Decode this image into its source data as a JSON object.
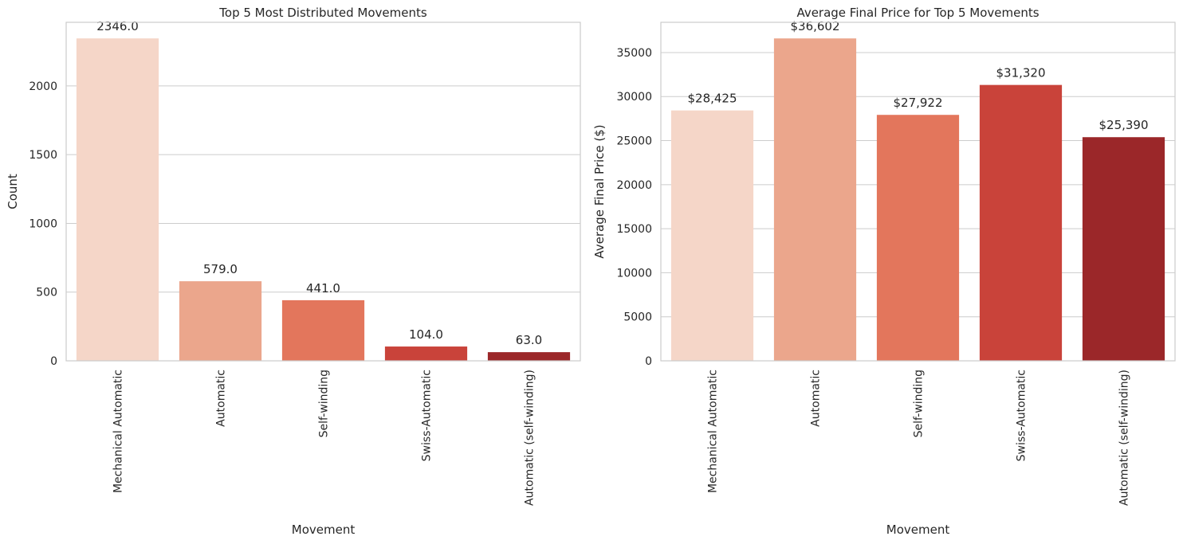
{
  "chart_data": [
    {
      "type": "bar",
      "title": "Top 5 Most Distributed Movements",
      "xlabel": "Movement",
      "ylabel": "Count",
      "categories": [
        "Mechanical Automatic",
        "Automatic",
        "Self-winding",
        "Swiss-Automatic",
        "Automatic (self-winding)"
      ],
      "values": [
        2346,
        579,
        441,
        104,
        63
      ],
      "value_labels": [
        "2346.0",
        "579.0",
        "441.0",
        "104.0",
        "63.0"
      ],
      "y_ticks": [
        0,
        500,
        1000,
        1500,
        2000
      ],
      "y_tick_labels": [
        "0",
        "500",
        "1000",
        "1500",
        "2000"
      ],
      "ylim": [
        0,
        2463
      ],
      "grid": true,
      "colors": [
        "#f5d6c8",
        "#eba68c",
        "#e3765c",
        "#c9433a",
        "#9b2729"
      ]
    },
    {
      "type": "bar",
      "title": "Average Final Price for Top 5 Movements",
      "xlabel": "Movement",
      "ylabel": "Average Final Price ($)",
      "categories": [
        "Mechanical Automatic",
        "Automatic",
        "Self-winding",
        "Swiss-Automatic",
        "Automatic (self-winding)"
      ],
      "values": [
        28425,
        36602,
        27922,
        31320,
        25390
      ],
      "value_labels": [
        "$28,425",
        "$36,602",
        "$27,922",
        "$31,320",
        "$25,390"
      ],
      "y_ticks": [
        0,
        5000,
        10000,
        15000,
        20000,
        25000,
        30000,
        35000
      ],
      "y_tick_labels": [
        "0",
        "5000",
        "10000",
        "15000",
        "20000",
        "25000",
        "30000",
        "35000"
      ],
      "ylim": [
        0,
        38432
      ],
      "grid": true,
      "colors": [
        "#f5d6c8",
        "#eba68c",
        "#e3765c",
        "#c9433a",
        "#9b2729"
      ]
    }
  ]
}
